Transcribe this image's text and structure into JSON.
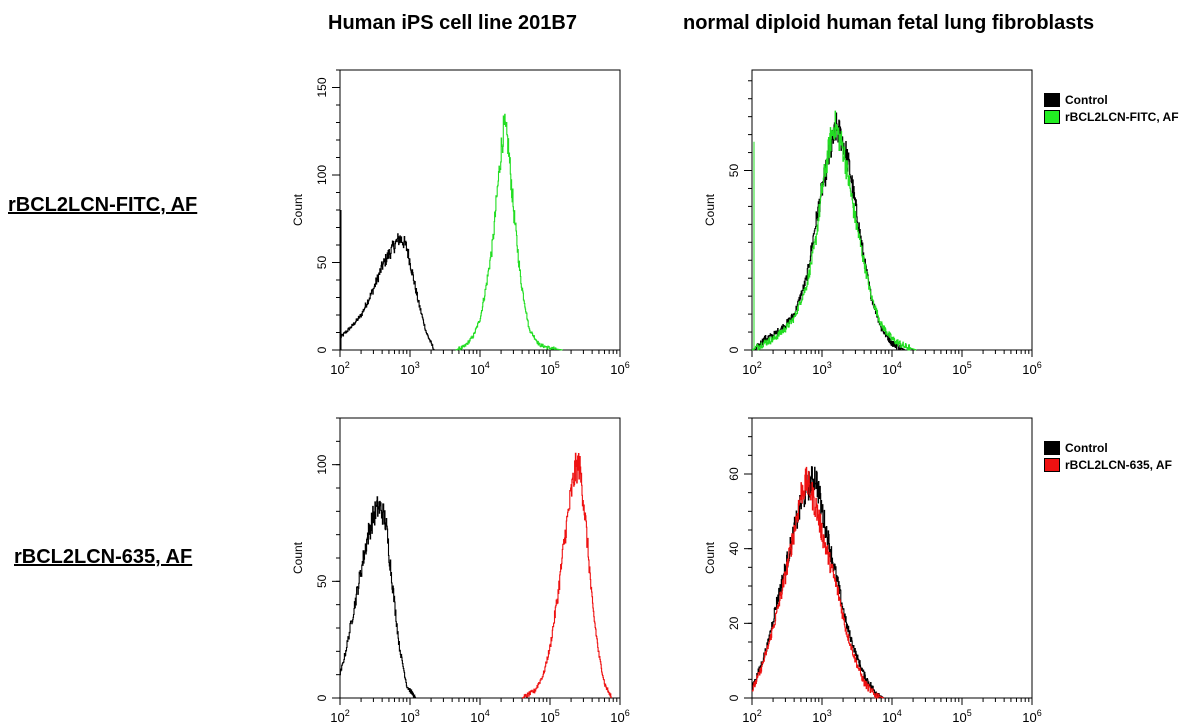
{
  "column_titles": [
    "Human iPS cell line 201B7",
    "normal diploid human fetal lung fibroblasts"
  ],
  "row_labels": [
    "rBCL2LCN-FITC, AF",
    "rBCL2LCN-635, AF"
  ],
  "colors": {
    "control": "#000000",
    "fitc": "#22dd22",
    "stain635": "#ee1111"
  },
  "legends": {
    "top": [
      {
        "label": "Control",
        "color": "#000000"
      },
      {
        "label": "rBCL2LCN-FITC, AF",
        "color": "#22ee22"
      }
    ],
    "bottom": [
      {
        "label": "Control",
        "color": "#000000"
      },
      {
        "label": "rBCL2LCN-635, AF",
        "color": "#ee1111"
      }
    ]
  },
  "chart_data": [
    {
      "type": "line",
      "title": "Human iPS cell line 201B7",
      "row_label": "rBCL2LCN-FITC, AF",
      "ylabel": "Count",
      "x_scale": "log",
      "xlim": [
        100,
        1000000
      ],
      "ylim": [
        0,
        160
      ],
      "y_ticks": [
        0,
        50,
        100,
        150
      ],
      "x_tick_labels": [
        "10^2",
        "10^3",
        "10^4",
        "10^5",
        "10^6"
      ],
      "series": [
        {
          "color": "#000000",
          "x": [
            100,
            150,
            200,
            300,
            400,
            500,
            600,
            700,
            800,
            900,
            1000,
            1300,
            1700,
            2200
          ],
          "y": [
            7,
            14,
            20,
            35,
            48,
            55,
            60,
            64,
            62,
            58,
            50,
            28,
            10,
            0
          ]
        },
        {
          "color": "#22dd22",
          "x": [
            4500,
            6000,
            8000,
            10000,
            12000,
            15000,
            18000,
            20000,
            22000,
            25000,
            30000,
            38000,
            50000,
            70000,
            100000,
            150000
          ],
          "y": [
            0,
            2,
            8,
            18,
            35,
            60,
            95,
            115,
            128,
            118,
            80,
            40,
            12,
            3,
            1,
            0
          ]
        }
      ]
    },
    {
      "type": "line",
      "title": "normal diploid human fetal lung fibroblasts",
      "row_label": "rBCL2LCN-FITC, AF",
      "ylabel": "Count",
      "x_scale": "log",
      "xlim": [
        100,
        1000000
      ],
      "ylim": [
        0,
        78
      ],
      "y_ticks": [
        0,
        50
      ],
      "x_tick_labels": [
        "10^2",
        "10^3",
        "10^4",
        "10^5",
        "10^6"
      ],
      "series": [
        {
          "color": "#000000",
          "x": [
            110,
            150,
            200,
            300,
            400,
            600,
            800,
            1000,
            1300,
            1600,
            2000,
            2500,
            3000,
            4000,
            5000,
            7000,
            10000,
            15000
          ],
          "y": [
            0,
            3,
            4,
            7,
            10,
            20,
            35,
            45,
            55,
            62,
            58,
            50,
            40,
            25,
            15,
            6,
            2,
            0
          ]
        },
        {
          "color": "#22dd22",
          "x": [
            100,
            150,
            200,
            300,
            400,
            600,
            800,
            1000,
            1300,
            1500,
            2000,
            2500,
            3000,
            4000,
            5000,
            7000,
            10000,
            15000,
            22000
          ],
          "y": [
            0,
            2,
            3,
            6,
            9,
            18,
            30,
            45,
            58,
            63,
            56,
            45,
            36,
            24,
            15,
            7,
            3,
            1,
            0
          ]
        }
      ]
    },
    {
      "type": "line",
      "title": "Human iPS cell line 201B7",
      "row_label": "rBCL2LCN-635, AF",
      "ylabel": "Count",
      "x_scale": "log",
      "xlim": [
        100,
        1000000
      ],
      "ylim": [
        0,
        120
      ],
      "y_ticks": [
        0,
        50,
        100
      ],
      "x_tick_labels": [
        "10^2",
        "10^3",
        "10^4",
        "10^5",
        "10^6"
      ],
      "series": [
        {
          "color": "#000000",
          "x": [
            100,
            120,
            150,
            200,
            250,
            300,
            350,
            400,
            450,
            500,
            600,
            700,
            900,
            1200
          ],
          "y": [
            10,
            20,
            35,
            55,
            70,
            78,
            82,
            80,
            75,
            62,
            40,
            22,
            5,
            0
          ]
        },
        {
          "color": "#ee1111",
          "x": [
            40000,
            60000,
            80000,
            100000,
            130000,
            160000,
            200000,
            230000,
            260000,
            300000,
            350000,
            400000,
            500000,
            600000,
            750000
          ],
          "y": [
            0,
            3,
            10,
            22,
            45,
            68,
            88,
            98,
            100,
            85,
            62,
            40,
            18,
            6,
            0
          ]
        }
      ]
    },
    {
      "type": "line",
      "title": "normal diploid human fetal lung fibroblasts",
      "row_label": "rBCL2LCN-635, AF",
      "ylabel": "Count",
      "x_scale": "log",
      "xlim": [
        100,
        1000000
      ],
      "ylim": [
        0,
        75
      ],
      "y_ticks": [
        0,
        20,
        40,
        60
      ],
      "x_tick_labels": [
        "10^2",
        "10^3",
        "10^4",
        "10^5",
        "10^6"
      ],
      "series": [
        {
          "color": "#000000",
          "x": [
            100,
            130,
            170,
            220,
            300,
            400,
            500,
            600,
            700,
            800,
            1000,
            1300,
            1700,
            2200,
            3000,
            4000,
            5500,
            7500
          ],
          "y": [
            3,
            8,
            15,
            25,
            35,
            45,
            52,
            56,
            58,
            60,
            50,
            40,
            30,
            20,
            12,
            6,
            2,
            0
          ]
        },
        {
          "color": "#ee1111",
          "x": [
            100,
            130,
            170,
            220,
            300,
            400,
            500,
            600,
            700,
            850,
            1000,
            1300,
            1700,
            2200,
            3000,
            4000,
            5500,
            7500
          ],
          "y": [
            2,
            7,
            14,
            22,
            33,
            45,
            55,
            58,
            55,
            50,
            44,
            36,
            28,
            18,
            10,
            4,
            1,
            0
          ]
        }
      ]
    }
  ]
}
